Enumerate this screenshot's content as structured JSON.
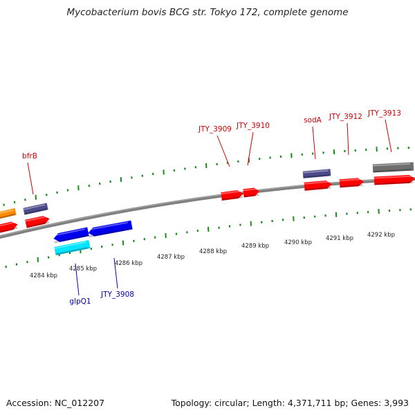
{
  "title": "Mycobacterium bovis BCG str. Tokyo 172, complete genome",
  "footer": {
    "accession": "Accession: NC_012207",
    "summary": "Topology: circular; Length: 4,371,711 bp; Genes: 3,993"
  },
  "colors": {
    "backbone": "#808080",
    "tick": "#1a8a1a",
    "forward_label": "#cc0000",
    "reverse_label": "#0000aa",
    "gene_red": "#ff0000",
    "gene_navy": "#4b4b8c",
    "gene_orange": "#ff8c00",
    "gene_blue": "#0000ee",
    "gene_cyan": "#00e5ff",
    "gene_gray": "#6e6e6e"
  },
  "scale_labels": [
    "4284 kbp",
    "4285 kbp",
    "4286 kbp",
    "4287 kbp",
    "4288 kbp",
    "4289 kbp",
    "4290 kbp",
    "4291 kbp",
    "4292 kbp"
  ],
  "gene_labels": [
    {
      "text": "bfrB",
      "strand": "forward"
    },
    {
      "text": "JTY_3909",
      "strand": "forward"
    },
    {
      "text": "JTY_3910",
      "strand": "forward"
    },
    {
      "text": "sodA",
      "strand": "forward"
    },
    {
      "text": "JTY_3912",
      "strand": "forward"
    },
    {
      "text": "JTY_3913",
      "strand": "forward"
    },
    {
      "text": "glpQ1",
      "strand": "reverse"
    },
    {
      "text": "JTY_3908",
      "strand": "reverse"
    }
  ],
  "features": [
    {
      "color": "gene_orange",
      "strand": "forward",
      "name": "gene-orange-left"
    },
    {
      "color": "gene_navy",
      "strand": "forward",
      "name": "gene-bfrB"
    },
    {
      "color": "gene_red",
      "strand": "forward",
      "name": "gene-red-left"
    },
    {
      "color": "gene_red",
      "strand": "forward",
      "name": "gene-bfrB-cds"
    },
    {
      "color": "gene_red",
      "strand": "forward",
      "name": "gene-JTY-3909"
    },
    {
      "color": "gene_red",
      "strand": "forward",
      "name": "gene-JTY-3910"
    },
    {
      "color": "gene_navy",
      "strand": "forward",
      "name": "gene-sodA"
    },
    {
      "color": "gene_red",
      "strand": "forward",
      "name": "gene-sodA-cds"
    },
    {
      "color": "gene_red",
      "strand": "forward",
      "name": "gene-JTY-3912"
    },
    {
      "color": "gene_gray",
      "strand": "forward",
      "name": "gene-JTY-3913"
    },
    {
      "color": "gene_red",
      "strand": "forward",
      "name": "gene-JTY-3913-cds"
    },
    {
      "color": "gene_blue",
      "strand": "reverse",
      "name": "gene-glpQ1"
    },
    {
      "color": "gene_blue",
      "strand": "reverse",
      "name": "gene-JTY-3908"
    },
    {
      "color": "gene_cyan",
      "strand": "reverse",
      "name": "gene-glpQ1-rna"
    }
  ]
}
